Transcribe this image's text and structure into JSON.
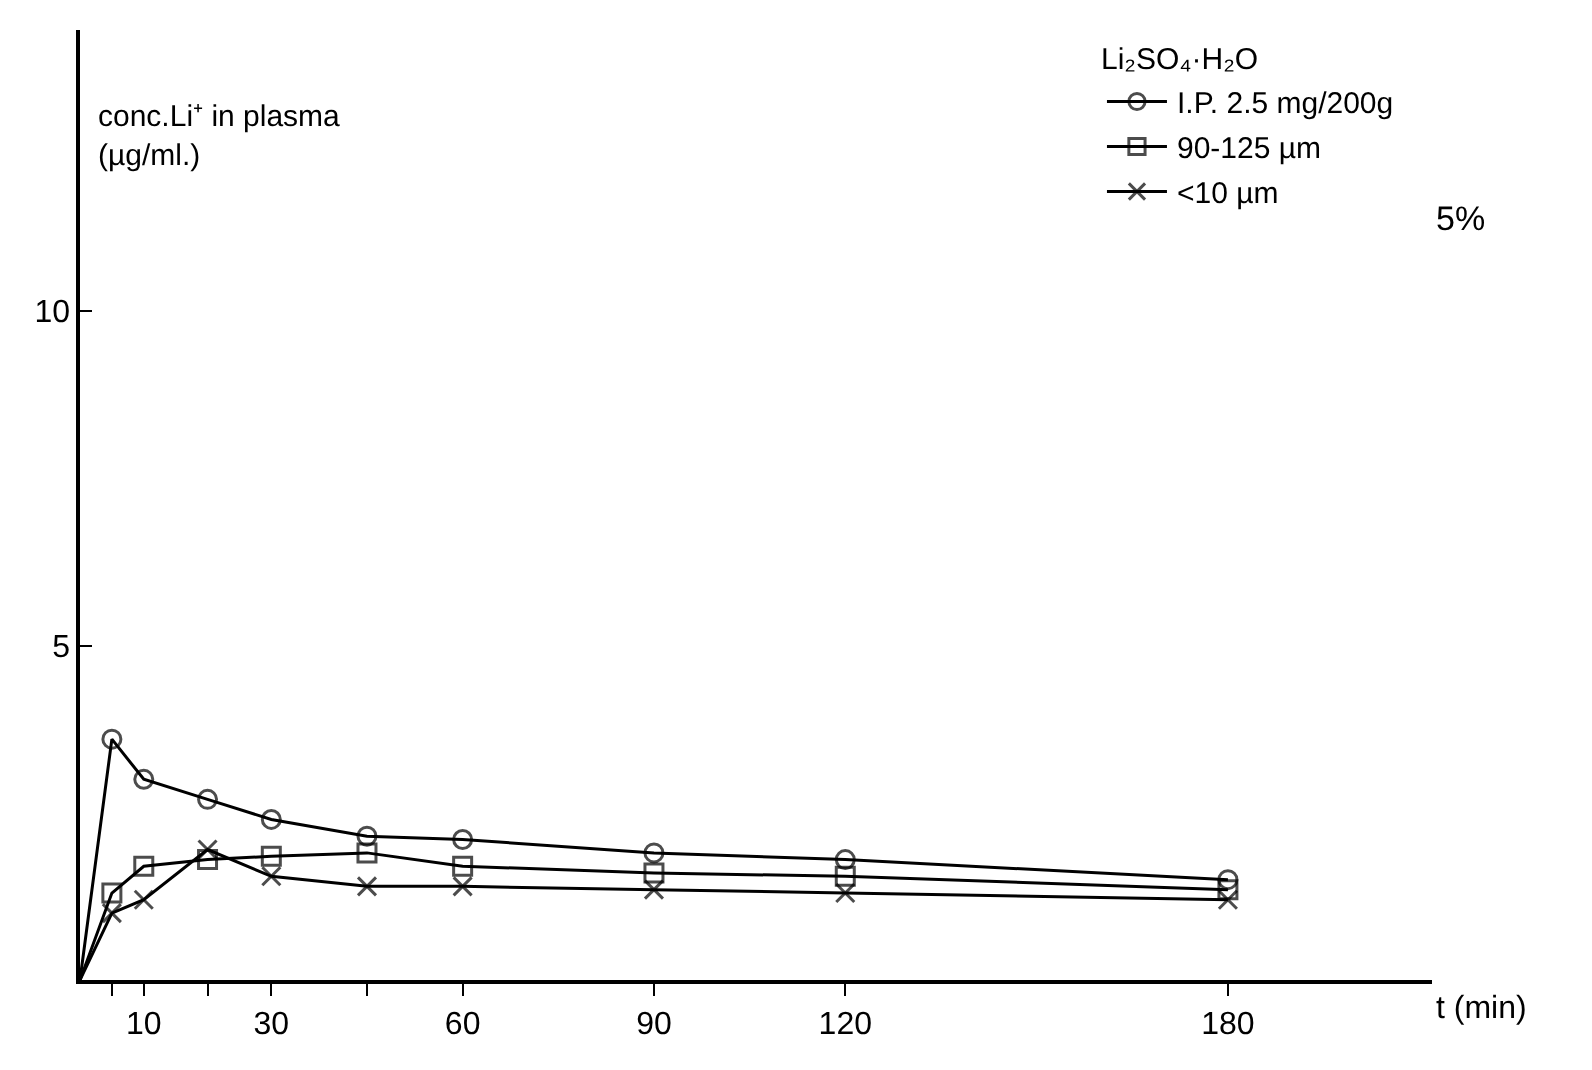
{
  "chart_data": {
    "type": "line",
    "xlabel": "t (min)",
    "ylabel": "conc.Li⁺ in plasma\n(µg/ml.)",
    "legend_title": "Li₂SO₄·H₂O",
    "x": [
      0,
      5,
      10,
      20,
      30,
      45,
      60,
      90,
      120,
      180
    ],
    "series": [
      {
        "name": "I.P. 2.5 mg/200g",
        "color": "#000000",
        "marker": "circle",
        "values": [
          0,
          3.6,
          3.0,
          2.7,
          2.4,
          2.15,
          2.1,
          1.9,
          1.8,
          1.5
        ]
      },
      {
        "name": "90-125 µm",
        "color": "#000000",
        "marker": "square",
        "values": [
          0,
          1.3,
          1.7,
          1.8,
          1.85,
          1.9,
          1.7,
          1.6,
          1.55,
          1.35
        ]
      },
      {
        "name": "<10 µm",
        "color": "#000000",
        "marker": "cross",
        "values": [
          0,
          1.0,
          1.2,
          1.95,
          1.55,
          1.4,
          1.4,
          1.35,
          1.3,
          1.2
        ]
      }
    ],
    "xlim": [
      0,
      212
    ],
    "ylim": [
      0,
      14.2
    ],
    "xticks": [
      {
        "value": 5,
        "label": null
      },
      10,
      {
        "value": 20,
        "label": null
      },
      30,
      {
        "value": 45,
        "label": null
      },
      60,
      90,
      120,
      180
    ],
    "yticks": [
      5,
      10
    ],
    "annotations": [
      "5%"
    ],
    "legend": "top right",
    "line_style": "solid"
  }
}
